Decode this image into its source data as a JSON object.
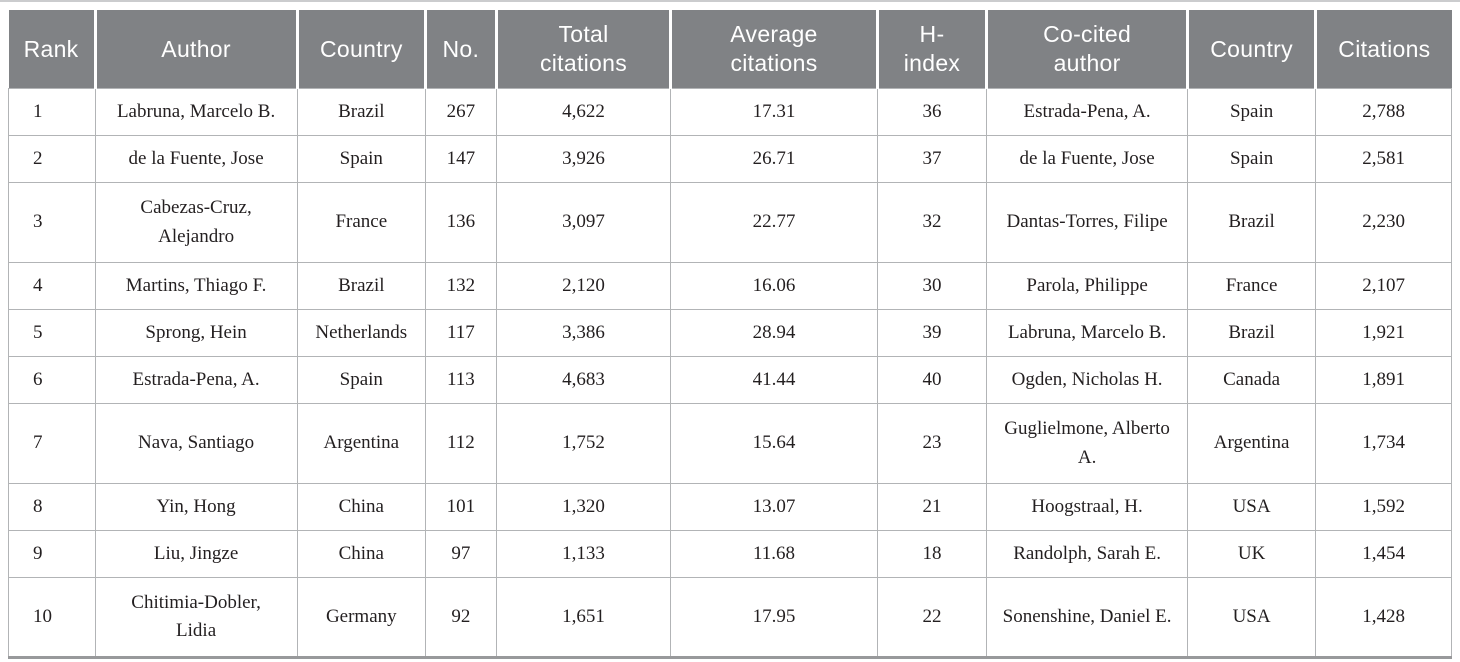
{
  "colors": {
    "header_bg": "#808285",
    "header_text": "#ffffff",
    "body_text": "#231f20",
    "grid_line": "#b2b4b6",
    "bottom_border": "#98999b",
    "top_rule": "#cbccce"
  },
  "table": {
    "columns": [
      {
        "key": "rank",
        "label": "Rank"
      },
      {
        "key": "author",
        "label": "Author"
      },
      {
        "key": "country",
        "label": "Country"
      },
      {
        "key": "no",
        "label": "No."
      },
      {
        "key": "total_citations",
        "label": "Total\ncitations"
      },
      {
        "key": "average_citations",
        "label": "Average\ncitations"
      },
      {
        "key": "h_index",
        "label": "H-\nindex"
      },
      {
        "key": "co_cited_author",
        "label": "Co-cited\nauthor"
      },
      {
        "key": "co_cited_country",
        "label": "Country"
      },
      {
        "key": "co_cited_citations",
        "label": "Citations"
      }
    ],
    "rows": [
      [
        "1",
        "Labruna, Marcelo B.",
        "Brazil",
        "267",
        "4,622",
        "17.31",
        "36",
        "Estrada-Pena, A.",
        "Spain",
        "2,788"
      ],
      [
        "2",
        "de la Fuente, Jose",
        "Spain",
        "147",
        "3,926",
        "26.71",
        "37",
        "de la Fuente, Jose",
        "Spain",
        "2,581"
      ],
      [
        "3",
        "Cabezas-Cruz, Alejandro",
        "France",
        "136",
        "3,097",
        "22.77",
        "32",
        "Dantas-Torres, Filipe",
        "Brazil",
        "2,230"
      ],
      [
        "4",
        "Martins, Thiago F.",
        "Brazil",
        "132",
        "2,120",
        "16.06",
        "30",
        "Parola, Philippe",
        "France",
        "2,107"
      ],
      [
        "5",
        "Sprong, Hein",
        "Netherlands",
        "117",
        "3,386",
        "28.94",
        "39",
        "Labruna, Marcelo B.",
        "Brazil",
        "1,921"
      ],
      [
        "6",
        "Estrada-Pena, A.",
        "Spain",
        "113",
        "4,683",
        "41.44",
        "40",
        "Ogden, Nicholas H.",
        "Canada",
        "1,891"
      ],
      [
        "7",
        "Nava, Santiago",
        "Argentina",
        "112",
        "1,752",
        "15.64",
        "23",
        "Guglielmone, Alberto A.",
        "Argentina",
        "1,734"
      ],
      [
        "8",
        "Yin, Hong",
        "China",
        "101",
        "1,320",
        "13.07",
        "21",
        "Hoogstraal, H.",
        "USA",
        "1,592"
      ],
      [
        "9",
        "Liu, Jingze",
        "China",
        "97",
        "1,133",
        "11.68",
        "18",
        "Randolph, Sarah E.",
        "UK",
        "1,454"
      ],
      [
        "10",
        "Chitimia-Dobler, Lidia",
        "Germany",
        "92",
        "1,651",
        "17.95",
        "22",
        "Sonenshine, Daniel E.",
        "USA",
        "1,428"
      ]
    ]
  }
}
